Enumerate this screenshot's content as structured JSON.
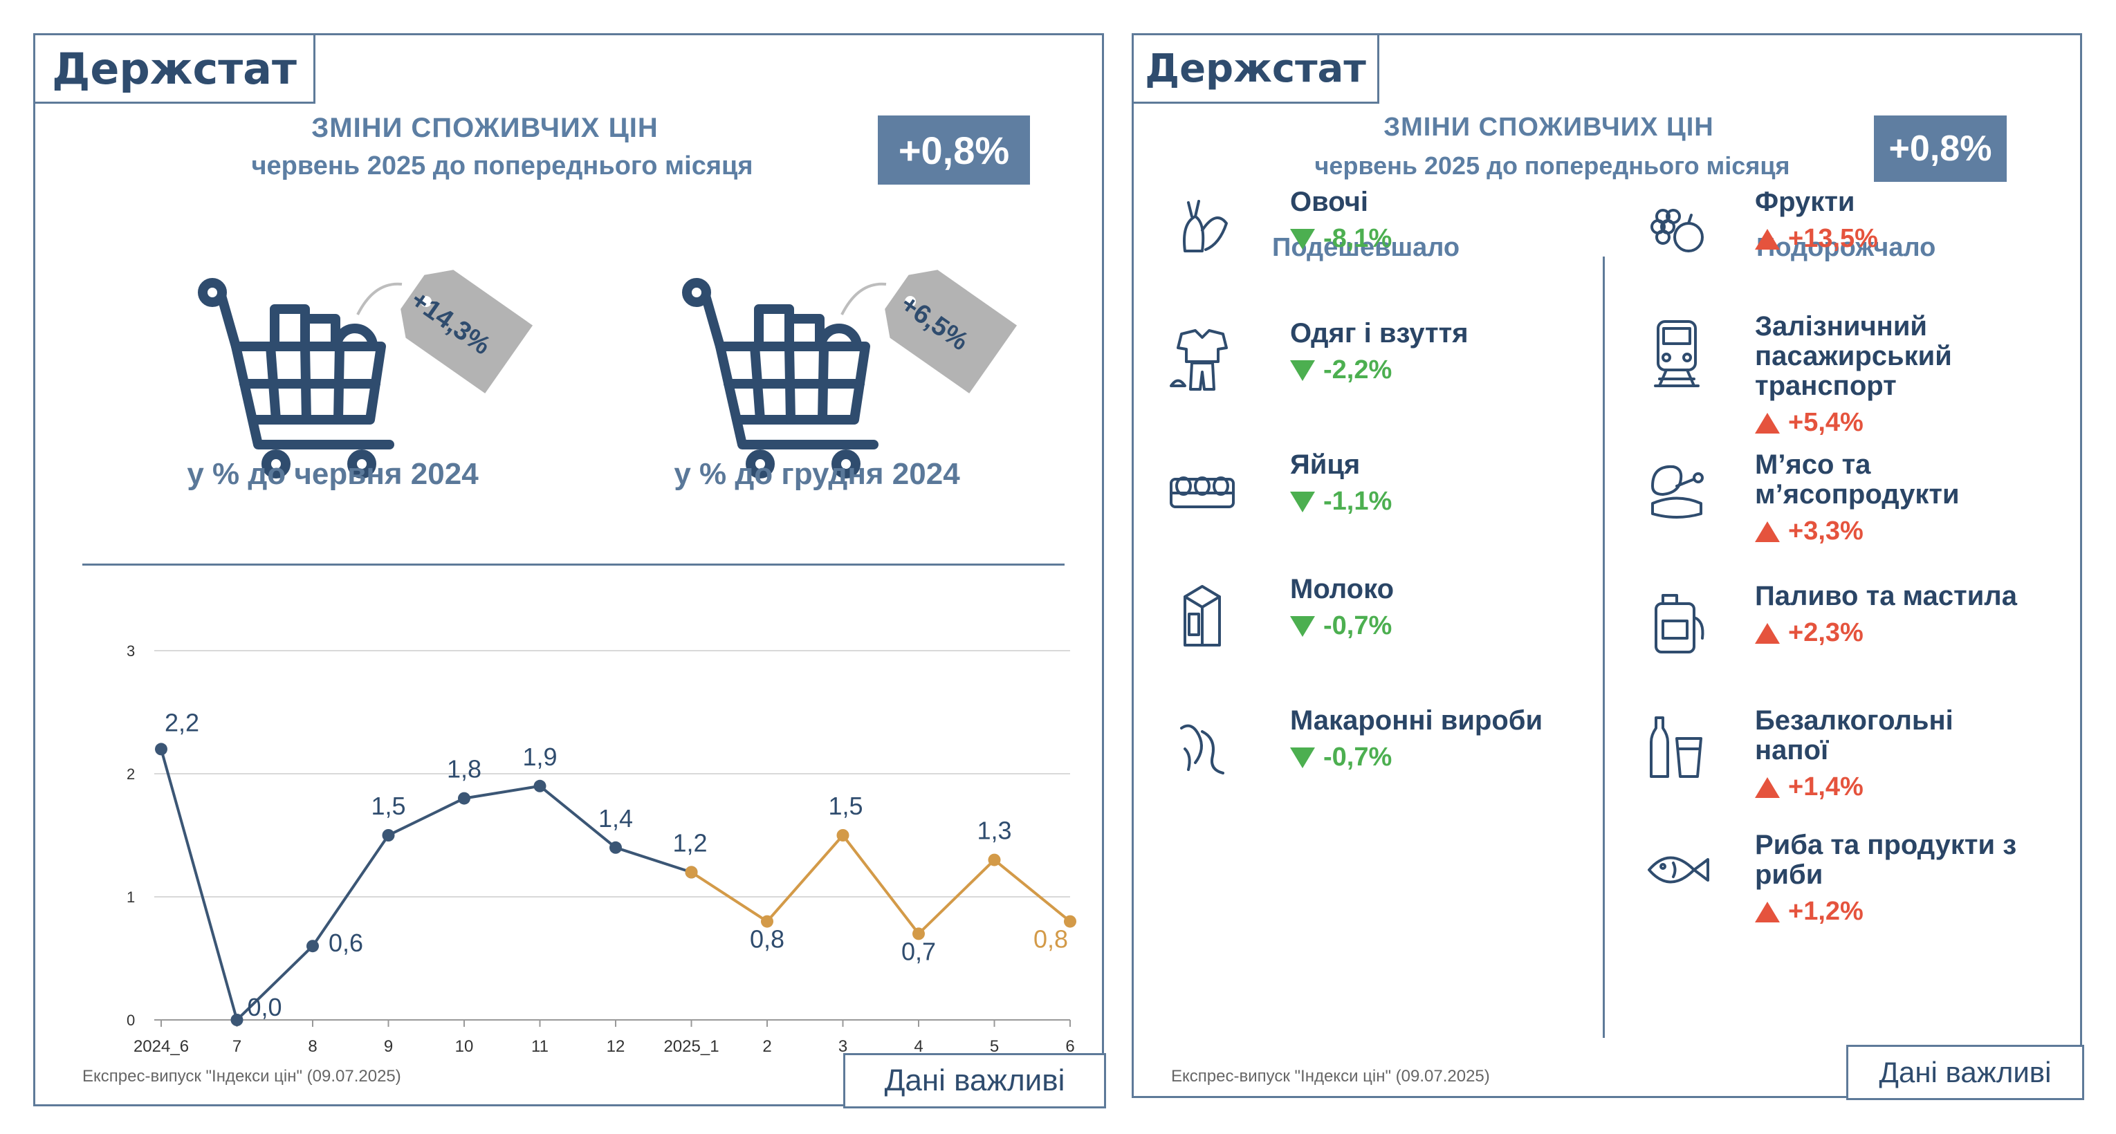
{
  "brand": "Держстат",
  "header": {
    "title": "ЗМІНИ СПОЖИВЧИХ ЦІН",
    "subtitle": "червень 2025 до попереднього місяця",
    "badge": "+0,8%"
  },
  "carts": [
    {
      "tag": "+14,3%",
      "caption": "у % до червня 2024"
    },
    {
      "tag": "+6,5%",
      "caption": "у % до грудня 2024"
    }
  ],
  "chart_data": {
    "type": "line",
    "categories": [
      "2024_6",
      "7",
      "8",
      "9",
      "10",
      "11",
      "12",
      "2025_1",
      "2",
      "3",
      "4",
      "5",
      "6"
    ],
    "series": [
      {
        "values": [
          2.2,
          0.0,
          0.6,
          1.5,
          1.8,
          1.9,
          1.4,
          1.2,
          null,
          null,
          null,
          null,
          null
        ],
        "color": "#3b5675"
      },
      {
        "values": [
          null,
          null,
          null,
          null,
          null,
          null,
          null,
          1.2,
          0.8,
          1.5,
          0.7,
          1.3,
          0.8
        ],
        "color": "#d39a48"
      }
    ],
    "data_labels": [
      "2,2",
      "0,0",
      "0,6",
      "1,5",
      "1,8",
      "1,9",
      "1,4",
      "1,2",
      "0,8",
      "1,5",
      "0,7",
      "1,3",
      "0,8"
    ],
    "yticks": [
      "0",
      "1",
      "2",
      "3"
    ],
    "ylim": [
      0,
      3
    ],
    "grid": true
  },
  "footer": {
    "source": "Експрес-випуск \"Індекси цін\" (09.07.2025)",
    "button": "Дані важливі"
  },
  "cheaper": {
    "heading": "Подешевшало",
    "items": [
      {
        "name": "Овочі",
        "value": "-8,1%",
        "icon": "vegetables-icon"
      },
      {
        "name": "Одяг і взуття",
        "value": "-2,2%",
        "icon": "clothing-icon"
      },
      {
        "name": "Яйця",
        "value": "-1,1%",
        "icon": "eggs-icon"
      },
      {
        "name": "Молоко",
        "value": "-0,7%",
        "icon": "milk-icon"
      },
      {
        "name": "Макаронні вироби",
        "value": "-0,7%",
        "icon": "pasta-icon"
      }
    ]
  },
  "pricier": {
    "heading": "Подорожчало",
    "items": [
      {
        "name": "Фрукти",
        "value": "+13,5%",
        "icon": "fruit-icon"
      },
      {
        "name": "Залізничний пасажирський транспорт",
        "value": "+5,4%",
        "icon": "train-icon"
      },
      {
        "name": "М’ясо та м’ясопродукти",
        "value": "+3,3%",
        "icon": "meat-icon"
      },
      {
        "name": "Паливо та мастила",
        "value": "+2,3%",
        "icon": "fuel-icon"
      },
      {
        "name": "Безалкогольні напої",
        "value": "+1,4%",
        "icon": "drinks-icon"
      },
      {
        "name": "Риба та продукти з риби",
        "value": "+1,2%",
        "icon": "fish-icon"
      }
    ]
  }
}
